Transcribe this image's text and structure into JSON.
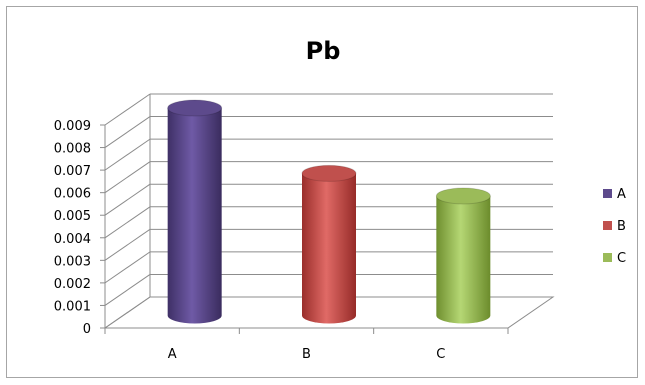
{
  "chart_data": {
    "type": "bar",
    "title": "Pb",
    "xlabel": "",
    "ylabel": "",
    "categories": [
      "A",
      "B",
      "C"
    ],
    "values": [
      0.0092,
      0.0063,
      0.0053
    ],
    "ylim": [
      0,
      0.009
    ],
    "yticks": [
      "0",
      "0.001",
      "0.002",
      "0.003",
      "0.004",
      "0.005",
      "0.006",
      "0.007",
      "0.008",
      "0.009"
    ],
    "legend": {
      "position": "right",
      "entries": [
        {
          "label": "A",
          "color": "#5d4a8c"
        },
        {
          "label": "B",
          "color": "#c0504d"
        },
        {
          "label": "C",
          "color": "#9bbb59"
        }
      ]
    },
    "grid": true,
    "style": "3d-cylinder"
  }
}
